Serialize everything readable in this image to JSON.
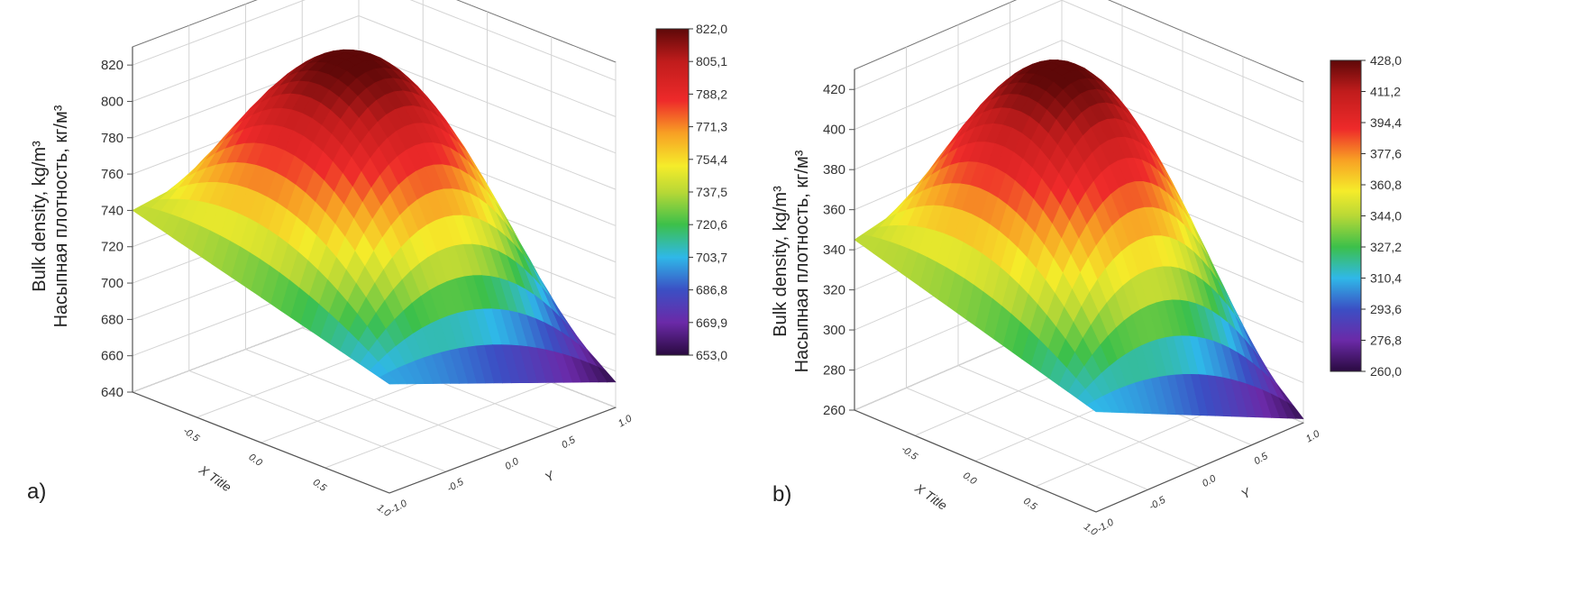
{
  "chart_data": [
    {
      "type": "surface",
      "panel_label": "a)",
      "ylabel_line1": "Bulk density, kg/m³",
      "ylabel_line2": "Насыпная плотность, кг/м³",
      "xlabel": "X Title",
      "ylabel_depth": "Y",
      "z_ticks": [
        "640",
        "660",
        "680",
        "700",
        "720",
        "740",
        "760",
        "780",
        "800",
        "820"
      ],
      "x_ticks": [
        "-0.5",
        "0.0",
        "0.5",
        "1.0"
      ],
      "y_ticks": [
        "-1.0",
        "-0.5",
        "0.0",
        "0.5",
        "1.0"
      ],
      "zlim": [
        640,
        830
      ],
      "xlim": [
        -1,
        1
      ],
      "ylim": [
        -1,
        1
      ],
      "colorbar": [
        "822,0",
        "805,1",
        "788,2",
        "771,3",
        "754,4",
        "737,5",
        "720,6",
        "703,7",
        "686,8",
        "669,9",
        "653,0"
      ],
      "colorbar_range": [
        653.0,
        822.0
      ],
      "surface": {
        "peak": 822,
        "corner_front": 700,
        "corner_left": 740,
        "corner_right": 654,
        "corner_back": 760
      }
    },
    {
      "type": "surface",
      "panel_label": "b)",
      "ylabel_line1": "Bulk density, kg/m³",
      "ylabel_line2": "Насыпная плотность, кг/м³",
      "xlabel": "X Title",
      "ylabel_depth": "Y",
      "z_ticks": [
        "260",
        "280",
        "300",
        "320",
        "340",
        "360",
        "380",
        "400",
        "420"
      ],
      "x_ticks": [
        "-0.5",
        "0.0",
        "0.5",
        "1.0"
      ],
      "y_ticks": [
        "-1.0",
        "-0.5",
        "0.0",
        "0.5",
        "1.0"
      ],
      "zlim": [
        260,
        430
      ],
      "xlim": [
        -1,
        1
      ],
      "ylim": [
        -1,
        1
      ],
      "colorbar": [
        "428,0",
        "411,2",
        "394,4",
        "377,6",
        "360,8",
        "344,0",
        "327,2",
        "310,4",
        "293,6",
        "276,8",
        "260,0"
      ],
      "colorbar_range": [
        260.0,
        428.0
      ],
      "surface": {
        "peak": 428,
        "corner_front": 310,
        "corner_left": 345,
        "corner_right": 262,
        "corner_back": 370
      }
    }
  ],
  "colors": {
    "scale": [
      "#3a0d5c",
      "#6b2aa8",
      "#3b4fc4",
      "#2fb8e8",
      "#3cc04a",
      "#b8d836",
      "#f5ec2a",
      "#f8a024",
      "#ee2a2a",
      "#d01f1f",
      "#7a0c0c"
    ]
  }
}
